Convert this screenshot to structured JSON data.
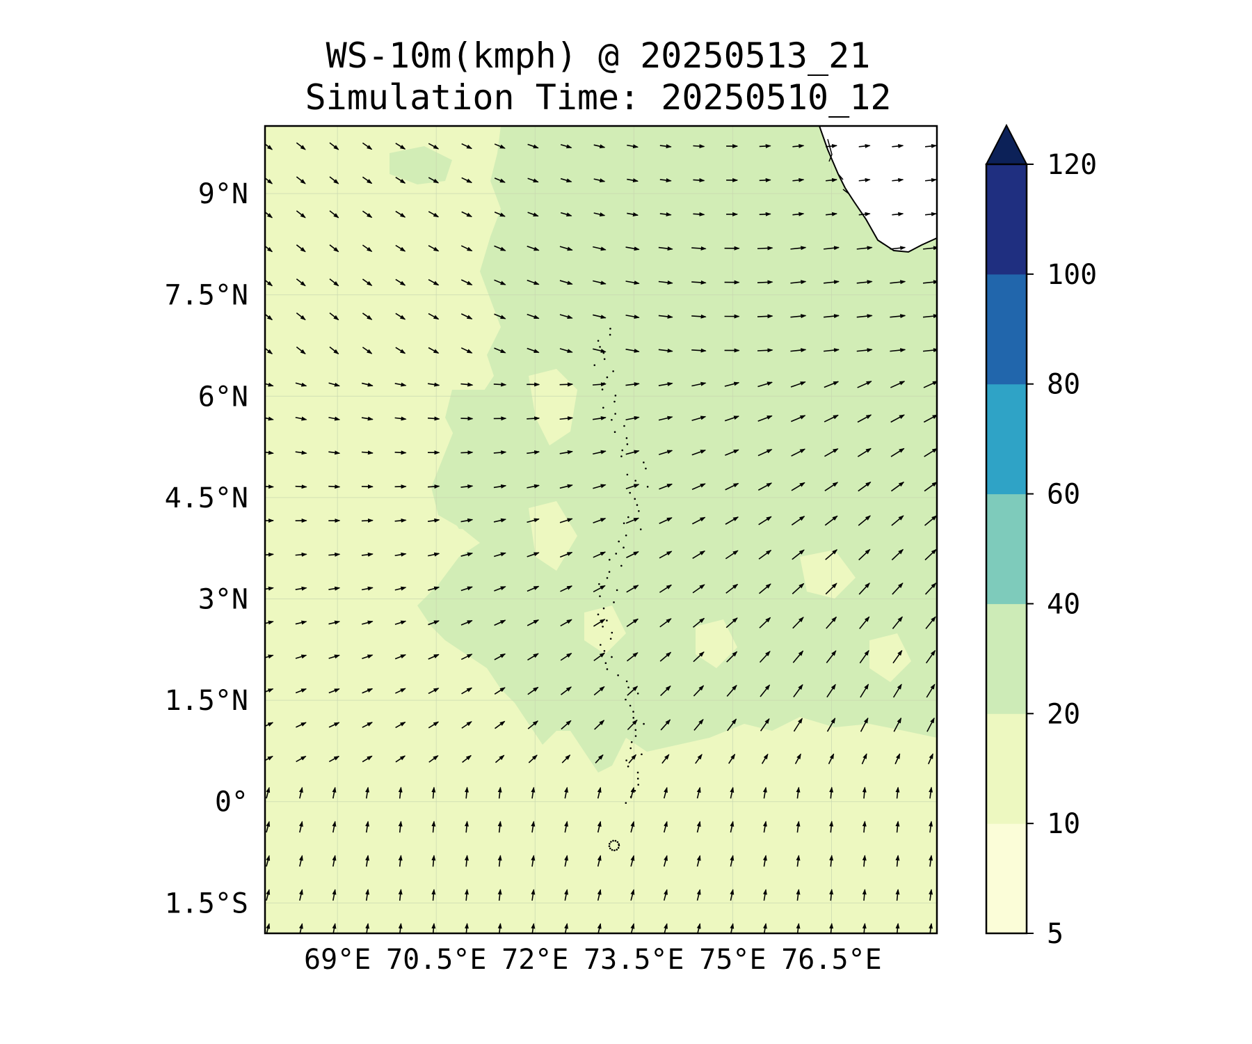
{
  "title": {
    "line1": "WS-10m(kmph) @ 20250513_21",
    "line2": "Simulation Time: 20250510_12"
  },
  "map": {
    "lon_range": [
      67.9,
      78.1
    ],
    "lat_range": [
      -1.95,
      10.0
    ],
    "lat_ticks": [
      {
        "value": 9,
        "label": "9°N"
      },
      {
        "value": 7.5,
        "label": "7.5°N"
      },
      {
        "value": 6,
        "label": "6°N"
      },
      {
        "value": 4.5,
        "label": "4.5°N"
      },
      {
        "value": 3,
        "label": "3°N"
      },
      {
        "value": 1.5,
        "label": "1.5°N"
      },
      {
        "value": 0,
        "label": "0°"
      },
      {
        "value": -1.5,
        "label": "1.5°S"
      }
    ],
    "lon_ticks": [
      {
        "value": 69,
        "label": "69°E"
      },
      {
        "value": 70.5,
        "label": "70.5°E"
      },
      {
        "value": 72,
        "label": "72°E"
      },
      {
        "value": 73.5,
        "label": "73.5°E"
      },
      {
        "value": 75,
        "label": "75°E"
      },
      {
        "value": 76.5,
        "label": "76.5°E"
      }
    ],
    "background_color": "#edf8c0",
    "band_color": "#d2edb6"
  },
  "colorbar": {
    "levels": [
      {
        "label": "5",
        "color": "#fbfdd8"
      },
      {
        "label": "10",
        "color": "#edf8c0"
      },
      {
        "label": "20",
        "color": "#cdebb7"
      },
      {
        "label": "40",
        "color": "#7ecbbb"
      },
      {
        "label": "60",
        "color": "#2fa3c6"
      },
      {
        "label": "80",
        "color": "#2166ac"
      },
      {
        "label": "100",
        "color": "#1f2f80"
      },
      {
        "label": "120",
        "color": ""
      }
    ],
    "extend_color": "#0c2158"
  }
}
